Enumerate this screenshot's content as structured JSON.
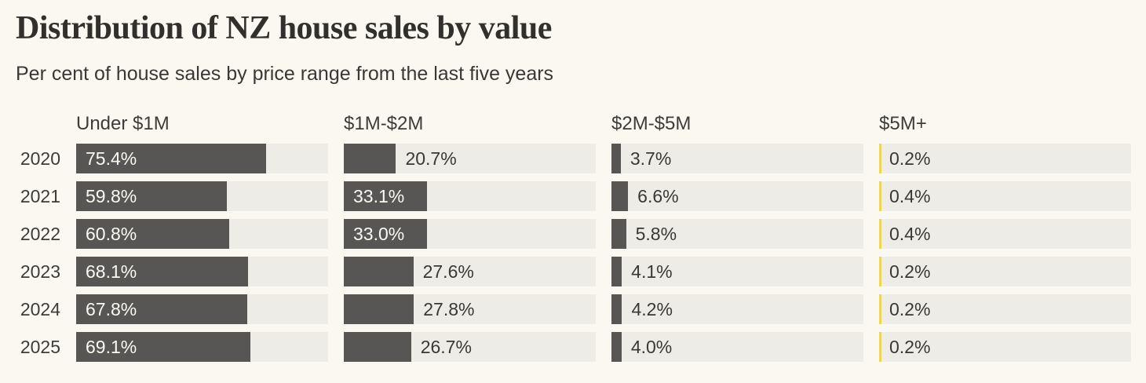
{
  "header": {
    "title": "Distribution of NZ house sales by value",
    "subtitle": "Per cent of house sales by price range from the last five years"
  },
  "colors": {
    "background": "#faf8f1",
    "track": "#edece6",
    "bar": "#575655",
    "tiny_bar_accent": "#f0d45a",
    "text_dark": "#3a3836",
    "bar_label_light": "#faf9f3"
  },
  "chart_data": {
    "type": "bar",
    "orientation": "horizontal",
    "title": "Distribution of NZ house sales by value",
    "subtitle": "Per cent of house sales by price range from the last five years",
    "unit": "%",
    "xlim": [
      0,
      100
    ],
    "grid": false,
    "categories": [
      "2020",
      "2021",
      "2022",
      "2023",
      "2024",
      "2025"
    ],
    "series": [
      {
        "name": "Under $1M",
        "values": [
          75.4,
          59.8,
          60.8,
          68.1,
          67.8,
          69.1
        ]
      },
      {
        "name": "$1M-$2M",
        "values": [
          20.7,
          33.1,
          33.0,
          27.6,
          27.8,
          26.7
        ]
      },
      {
        "name": "$2M-$5M",
        "values": [
          3.7,
          6.6,
          5.8,
          4.1,
          4.2,
          4.0
        ]
      },
      {
        "name": "$5M+",
        "values": [
          0.2,
          0.4,
          0.4,
          0.2,
          0.2,
          0.2
        ]
      }
    ],
    "label_format": "one_decimal_percent",
    "legend_position": "column-headers"
  }
}
